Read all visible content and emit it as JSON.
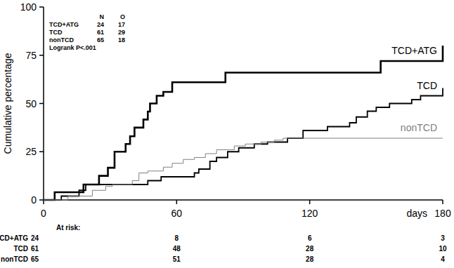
{
  "chart_data": {
    "type": "step",
    "x_label": "days",
    "y_label": "Cumulative percentage",
    "xlim": [
      0,
      180
    ],
    "ylim": [
      0,
      100
    ],
    "xticks": [
      0,
      60,
      120,
      180
    ],
    "yticks": [
      0,
      25,
      50,
      75,
      100
    ],
    "grid": false,
    "legend_header": [
      "N",
      "O"
    ],
    "annotation": "Logrank P<.001",
    "at_risk_label": "At risk:",
    "at_risk_x": [
      0,
      60,
      120,
      180
    ],
    "series": [
      {
        "name": "TCD+ATG",
        "color": "#000000",
        "n": 24,
        "o": 17,
        "at_risk": [
          24,
          8,
          6,
          3
        ],
        "x": [
          0,
          5,
          18,
          25,
          29,
          32,
          37,
          39,
          41,
          45,
          47,
          48,
          51,
          54,
          58,
          82,
          152,
          180
        ],
        "values": [
          0,
          4,
          8,
          12.5,
          16.7,
          25,
          29,
          33,
          37.5,
          41.7,
          45.8,
          50,
          54,
          56,
          61,
          66,
          72,
          80
        ]
      },
      {
        "name": "TCD",
        "color": "#000000",
        "n": 61,
        "o": 29,
        "at_risk": [
          61,
          48,
          28,
          10
        ],
        "x": [
          0,
          8,
          16,
          19,
          47,
          53,
          68,
          70,
          75,
          78,
          83,
          88,
          95,
          101,
          110,
          117,
          128,
          138,
          141,
          146,
          150,
          156,
          166,
          170,
          180
        ],
        "values": [
          0,
          2,
          5,
          8,
          10,
          12,
          14,
          16,
          20,
          22,
          25,
          27,
          29,
          30,
          32,
          36,
          38,
          40,
          43,
          46,
          48,
          50,
          52,
          54,
          58
        ]
      },
      {
        "name": "nonTCD",
        "color": "#808080",
        "n": 65,
        "o": 18,
        "at_risk": [
          65,
          51,
          28,
          4
        ],
        "x": [
          0,
          11,
          22,
          28,
          31,
          40,
          43,
          47,
          54,
          58,
          63,
          68,
          73,
          78,
          86,
          91,
          98,
          104,
          108,
          180
        ],
        "values": [
          0,
          2,
          5,
          7,
          8,
          10,
          14,
          15,
          17,
          19,
          21,
          22,
          24,
          26,
          28,
          29,
          30,
          31,
          32,
          32
        ]
      }
    ]
  }
}
